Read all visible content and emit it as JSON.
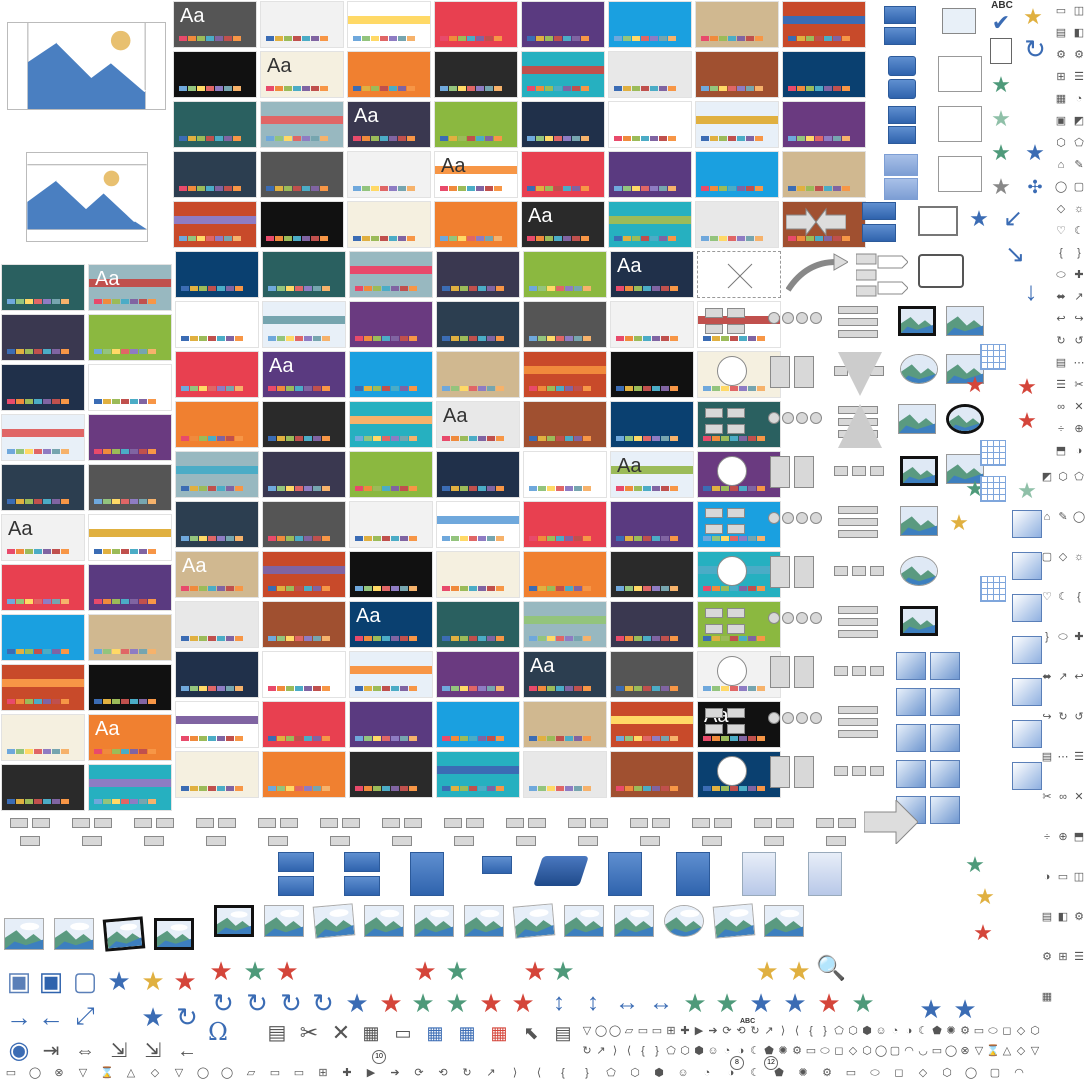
{
  "themes": {
    "aa_label": "Aa"
  },
  "abc_label": "ABC",
  "abc_small_label": "ABC",
  "omega_label": "Ω",
  "ten_label": "10",
  "eight_label": "8",
  "twelve_label": "12",
  "icons": {
    "checkmark": "✔",
    "star": "★",
    "close": "✕",
    "plus": "+",
    "arrow_left": "←",
    "arrow_right": "→",
    "arrow_up": "↑",
    "arrow_down": "↓",
    "refresh": "↻",
    "search": "🔍",
    "gear": "⚙",
    "scissors": "✂",
    "heart": "♡",
    "sun": "☼",
    "moon": "☾",
    "smile": "☺"
  },
  "colors": {
    "accent_blue": "#3b6cb4",
    "star_red": "#d4453a",
    "star_green": "#4e9a7a",
    "star_gold": "#e0b040",
    "mountain": "#4a7fc1",
    "sun": "#e8c070"
  }
}
